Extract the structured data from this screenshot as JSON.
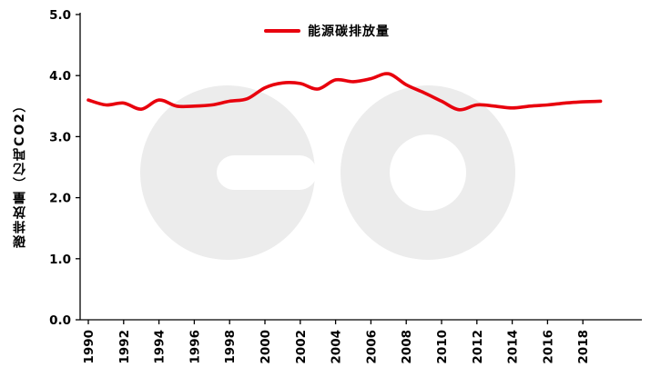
{
  "legend": {
    "label": "能源碳排放量"
  },
  "y_axis_title": "碳排放量（亿吨CO2）",
  "colors": {
    "line": "#e8000d",
    "axis": "#000000",
    "watermark": "#ececec",
    "background": "#ffffff"
  },
  "chart_data": {
    "type": "line",
    "title": "",
    "xlabel": "",
    "ylabel": "碳排放量（亿吨CO2）",
    "ylim": [
      0,
      5
    ],
    "grid": false,
    "legend_position": "top-center",
    "y_ticks": [
      0,
      1,
      2,
      3,
      4,
      5
    ],
    "y_tick_labels": [
      "0.0",
      "1.0",
      "2.0",
      "3.0",
      "4.0",
      "5.0"
    ],
    "x": [
      1990,
      1991,
      1992,
      1993,
      1994,
      1995,
      1996,
      1997,
      1998,
      1999,
      2000,
      2001,
      2002,
      2003,
      2004,
      2005,
      2006,
      2007,
      2008,
      2009,
      2010,
      2011,
      2012,
      2013,
      2014,
      2015,
      2016,
      2017,
      2018,
      2019
    ],
    "x_tick_labels": [
      "1990",
      "1992",
      "1994",
      "1996",
      "1998",
      "2000",
      "2002",
      "2004",
      "2006",
      "2008",
      "2010",
      "2012",
      "2014",
      "2016",
      "2018"
    ],
    "series": [
      {
        "name": "能源碳排放量",
        "color": "#e8000d",
        "values": [
          3.6,
          3.52,
          3.55,
          3.45,
          3.6,
          3.5,
          3.5,
          3.52,
          3.58,
          3.62,
          3.8,
          3.88,
          3.87,
          3.78,
          3.93,
          3.9,
          3.95,
          4.03,
          3.85,
          3.72,
          3.58,
          3.44,
          3.52,
          3.5,
          3.47,
          3.5,
          3.52,
          3.55,
          3.57,
          3.58
        ]
      }
    ]
  },
  "watermark": {
    "text": "eo"
  }
}
